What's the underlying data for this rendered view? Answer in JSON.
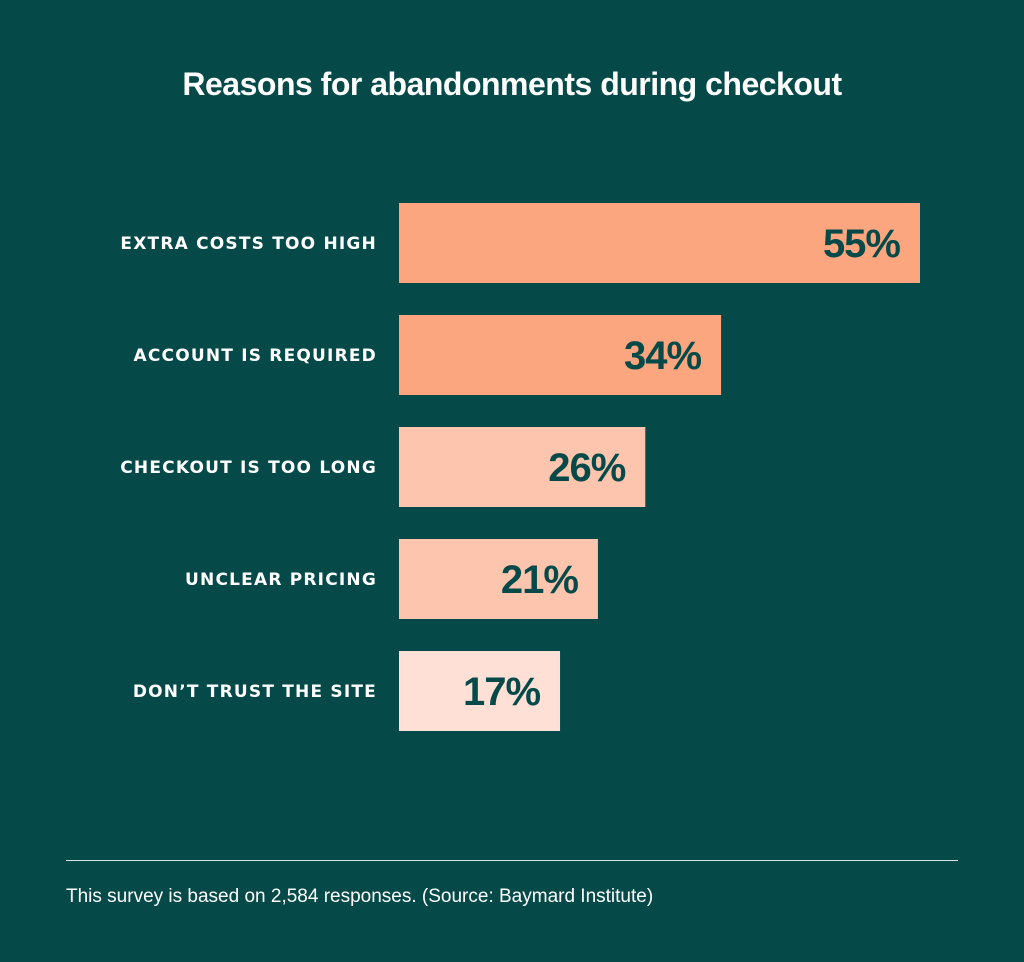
{
  "chart_data": {
    "type": "bar",
    "orientation": "horizontal",
    "title": "Reasons for abandonments during checkout",
    "categories": [
      "EXTRA COSTS TOO HIGH",
      "ACCOUNT IS REQUIRED",
      "CHECKOUT IS TOO LONG",
      "UNCLEAR PRICING",
      "DON’T TRUST THE SITE"
    ],
    "values": [
      55,
      34,
      26,
      21,
      17
    ],
    "value_labels": [
      "55%",
      "34%",
      "26%",
      "21%",
      "17%"
    ],
    "unit": "%",
    "bar_colors": [
      "#fca67f",
      "#fca67f",
      "#fdc5ae",
      "#fdc5ae",
      "#fee0d6"
    ],
    "grid": false,
    "legend": "none"
  },
  "footer": {
    "note": "This survey is based on 2,584 responses. (Source: Baymard Institute)"
  },
  "colors": {
    "background": "#054a49",
    "text": "#ffffff",
    "value_text": "#054a49"
  }
}
